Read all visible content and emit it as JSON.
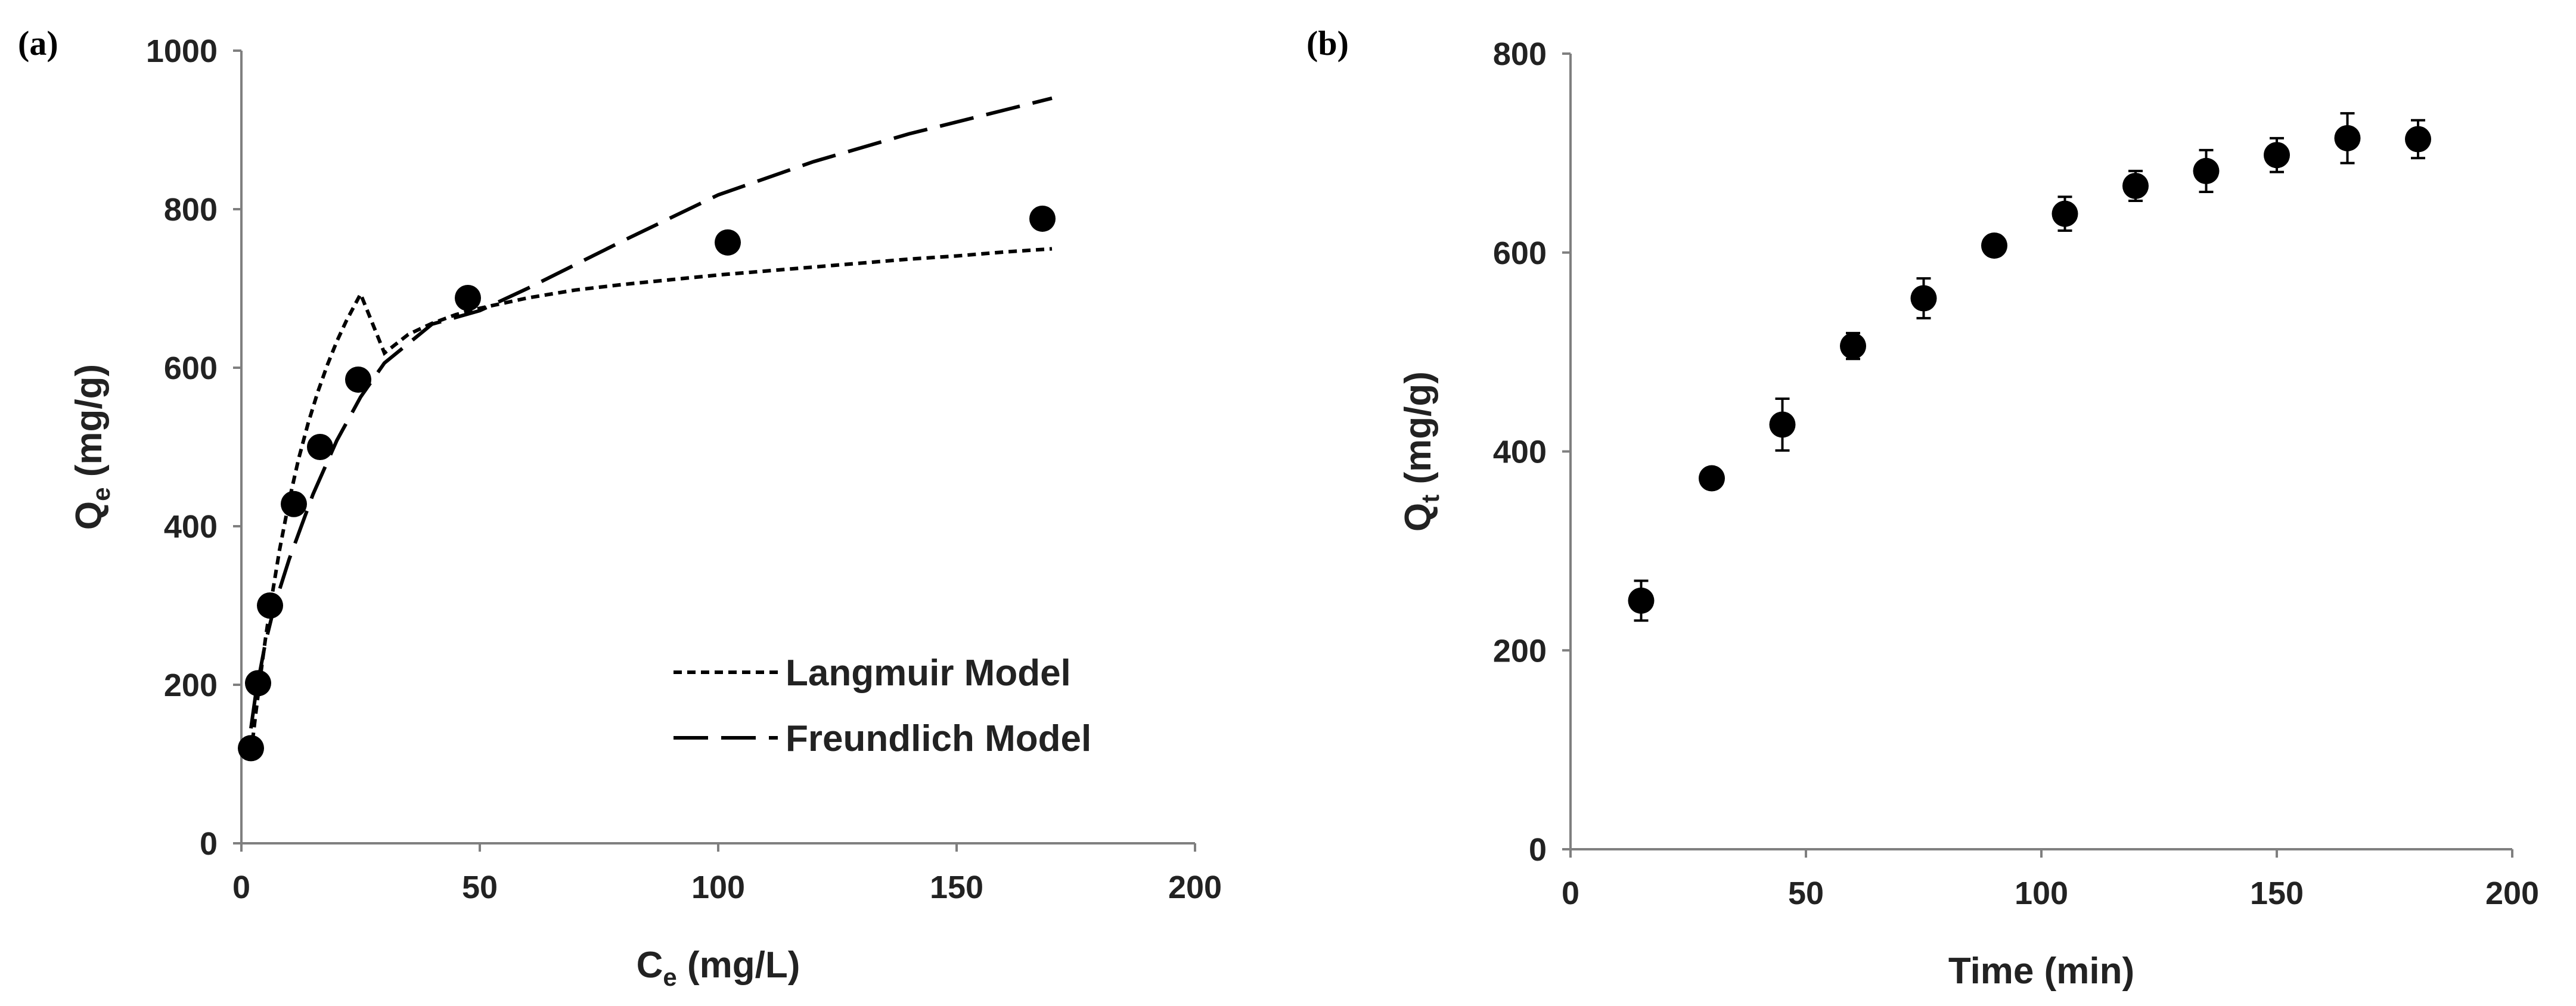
{
  "chart_data": [
    {
      "type": "scatter",
      "panel_label": "(a)",
      "xlabel": {
        "main": "C",
        "sub": "e",
        "rest": " (mg/L)"
      },
      "ylabel": {
        "main": "Q",
        "sub": "e",
        "rest": " (mg/g)"
      },
      "xlim": [
        0,
        200
      ],
      "ylim": [
        0,
        1000
      ],
      "xticks": [
        0,
        50,
        100,
        150,
        200
      ],
      "yticks": [
        0,
        200,
        400,
        600,
        800,
        1000
      ],
      "grid": false,
      "legend_position": "bottom-right",
      "series": [
        {
          "kind": "markers",
          "x": [
            2,
            3.5,
            6,
            11,
            16.5,
            24.5,
            47.5,
            102,
            168
          ],
          "y": [
            120,
            202,
            300,
            428,
            500,
            585,
            688,
            758,
            788
          ]
        },
        {
          "kind": "line",
          "style": "dotted",
          "name": "Langmuir Model",
          "x": [
            2,
            3,
            4,
            5,
            6,
            8,
            10,
            12,
            14,
            16,
            18,
            20,
            22,
            25,
            30,
            35,
            40,
            45,
            50,
            60,
            70,
            80,
            90,
            100,
            110,
            120,
            130,
            140,
            150,
            160,
            170
          ],
          "y": [
            112,
            163,
            211,
            256,
            297,
            370,
            432,
            485,
            530,
            569,
            603,
            633,
            659,
            693,
            618.5,
            642,
            656,
            667,
            675,
            688,
            698,
            705,
            711,
            717,
            722,
            727,
            732,
            737,
            741,
            746,
            750
          ]
        },
        {
          "kind": "line",
          "style": "dashed",
          "name": "Freundlich Model",
          "x": [
            2,
            3,
            5,
            7,
            10,
            15,
            20,
            25,
            30,
            40,
            50,
            60,
            80,
            100,
            120,
            140,
            160,
            170
          ],
          "y": [
            145,
            188,
            252,
            301,
            358,
            440,
            508,
            563,
            606,
            655,
            672,
            700,
            760,
            818,
            860,
            895,
            925,
            940
          ]
        }
      ]
    },
    {
      "type": "scatter",
      "panel_label": "(b)",
      "xlabel": {
        "main": "Time (min)",
        "sub": "",
        "rest": ""
      },
      "ylabel": {
        "main": "Q",
        "sub": "t",
        "rest": " (mg/g)"
      },
      "xlim": [
        0,
        200
      ],
      "ylim": [
        0,
        800
      ],
      "xticks": [
        0,
        50,
        100,
        150,
        200
      ],
      "yticks": [
        0,
        200,
        400,
        600,
        800
      ],
      "grid": false,
      "series": [
        {
          "kind": "markers_with_error",
          "x": [
            15,
            30,
            45,
            60,
            75,
            90,
            105,
            120,
            135,
            150,
            165,
            180
          ],
          "y": [
            250,
            373,
            427,
            506,
            554,
            607,
            639,
            667,
            682,
            698,
            715,
            714
          ],
          "err": [
            20,
            5,
            26,
            13,
            20,
            10,
            17,
            15,
            21,
            17,
            25,
            19
          ]
        }
      ]
    }
  ]
}
